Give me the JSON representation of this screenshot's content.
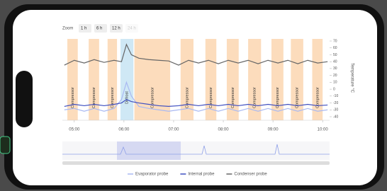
{
  "ui": {
    "zoom_label": "Zoom",
    "zoom_options": [
      "1 h",
      "6 h",
      "12 h",
      "24 h"
    ]
  },
  "chart_data": {
    "type": "line",
    "y_label": "Temperature °C",
    "x": [
      4.8,
      5.0,
      5.2,
      5.4,
      5.6,
      5.8,
      5.95,
      6.05,
      6.15,
      6.3,
      6.5,
      6.7,
      6.9,
      7.1,
      7.3,
      7.5,
      7.7,
      7.9,
      8.1,
      8.3,
      8.5,
      8.7,
      8.9,
      9.1,
      9.3,
      9.5,
      9.7,
      9.9,
      10.1
    ],
    "series": [
      {
        "name": "Evaporator probe",
        "color": "#a9b9f2",
        "values": [
          -30,
          -28,
          -32,
          -28,
          -32,
          -28,
          -15,
          10,
          -10,
          -25,
          -28,
          -30,
          -32,
          -30,
          -28,
          -32,
          -28,
          -32,
          -28,
          -32,
          -28,
          -32,
          -28,
          -32,
          -28,
          -32,
          -28,
          -32,
          -30
        ]
      },
      {
        "name": "Internal probe",
        "color": "#3f4fc0",
        "values": [
          -25,
          -22,
          -24,
          -22,
          -24,
          -22,
          -20,
          -15,
          -18,
          -20,
          -22,
          -24,
          -25,
          -24,
          -22,
          -24,
          -22,
          -24,
          -22,
          -24,
          -22,
          -24,
          -22,
          -24,
          -22,
          -24,
          -22,
          -24,
          -23
        ]
      },
      {
        "name": "Condenser probe",
        "color": "#666666",
        "values": [
          35,
          42,
          38,
          43,
          39,
          42,
          40,
          65,
          50,
          45,
          43,
          42,
          41,
          35,
          42,
          38,
          42,
          37,
          42,
          38,
          42,
          37,
          42,
          38,
          42,
          37,
          42,
          38,
          40
        ]
      }
    ],
    "bands": [
      {
        "label": "Compressor",
        "start": 4.86,
        "end": 5.07,
        "color": "#fcdcbc"
      },
      {
        "label": "Compressor",
        "start": 5.29,
        "end": 5.5,
        "color": "#fcdcbc"
      },
      {
        "label": "Compressor",
        "start": 5.67,
        "end": 5.86,
        "color": "#fcdcbc"
      },
      {
        "label": "Defrost",
        "start": 5.93,
        "end": 6.19,
        "color": "#cfe8f5"
      },
      {
        "label": "Compressor",
        "start": 6.21,
        "end": 6.93,
        "color": "#fcdcbc"
      },
      {
        "label": "Compressor",
        "start": 7.14,
        "end": 7.4,
        "color": "#fcdcbc"
      },
      {
        "label": "Compressor",
        "start": 7.64,
        "end": 7.86,
        "color": "#fcdcbc"
      },
      {
        "label": "Compressor",
        "start": 8.07,
        "end": 8.31,
        "color": "#fcdcbc"
      },
      {
        "label": "Compressor",
        "start": 8.5,
        "end": 8.76,
        "color": "#fcdcbc"
      },
      {
        "label": "Compressor",
        "start": 8.97,
        "end": 9.21,
        "color": "#fcdcbc"
      },
      {
        "label": "Compressor",
        "start": 9.36,
        "end": 9.61,
        "color": "#fcdcbc"
      },
      {
        "label": "Compressor",
        "start": 9.79,
        "end": 10.0,
        "color": "#fcdcbc"
      }
    ],
    "xlim": [
      4.76,
      10.14
    ],
    "xticks": [
      {
        "value": 5,
        "label": "05:00"
      },
      {
        "value": 6,
        "label": "06:00"
      },
      {
        "value": 7,
        "label": "07:00"
      },
      {
        "value": 8,
        "label": "08:00"
      },
      {
        "value": 9,
        "label": "09:00"
      },
      {
        "value": 10,
        "label": "10:00"
      }
    ],
    "ylim": [
      -40,
      70
    ],
    "yticks": [
      -40,
      -30,
      -20,
      -10,
      0,
      10,
      20,
      30,
      40,
      50,
      60,
      70
    ]
  }
}
